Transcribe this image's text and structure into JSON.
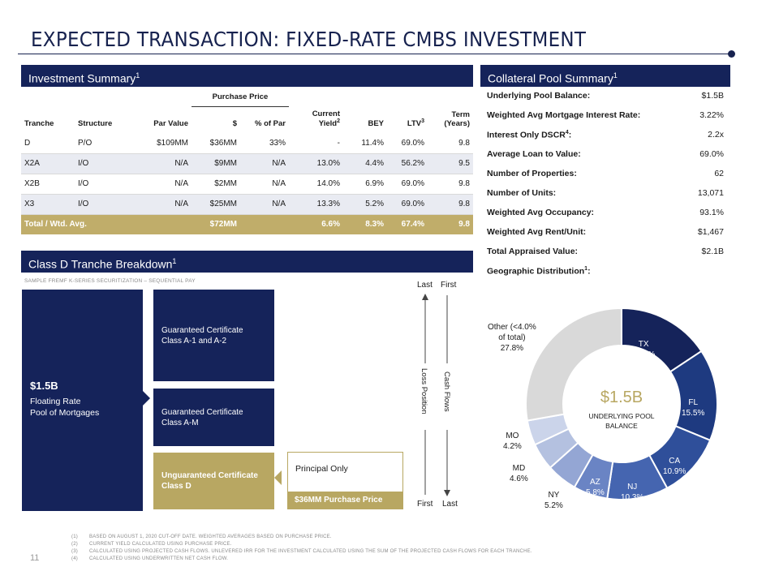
{
  "title": "EXPECTED TRANSACTION: FIXED-RATE CMBS INVESTMENT",
  "investment_summary": {
    "heading": "Investment Summary",
    "heading_sup": "1",
    "purchase_price_group": "Purchase Price",
    "columns": {
      "tranche": "Tranche",
      "structure": "Structure",
      "par_value": "Par Value",
      "dollar": "$",
      "pct_par": "% of Par",
      "current_yield": "Current Yield",
      "current_yield_sup": "2",
      "bey": "BEY",
      "ltv": "LTV",
      "ltv_sup": "3",
      "term": "Term (Years)"
    },
    "rows": [
      {
        "tranche": "D",
        "structure": "P/O",
        "par": "$109MM",
        "dollar": "$36MM",
        "pct": "33%",
        "yield": "-",
        "bey": "11.4%",
        "ltv": "69.0%",
        "term": "9.8"
      },
      {
        "tranche": "X2A",
        "structure": "I/O",
        "par": "N/A",
        "dollar": "$9MM",
        "pct": "N/A",
        "yield": "13.0%",
        "bey": "4.4%",
        "ltv": "56.2%",
        "term": "9.5"
      },
      {
        "tranche": "X2B",
        "structure": "I/O",
        "par": "N/A",
        "dollar": "$2MM",
        "pct": "N/A",
        "yield": "14.0%",
        "bey": "6.9%",
        "ltv": "69.0%",
        "term": "9.8"
      },
      {
        "tranche": "X3",
        "structure": "I/O",
        "par": "N/A",
        "dollar": "$25MM",
        "pct": "N/A",
        "yield": "13.3%",
        "bey": "5.2%",
        "ltv": "69.0%",
        "term": "9.8"
      }
    ],
    "total": {
      "label": "Total / Wtd. Avg.",
      "dollar": "$72MM",
      "yield": "6.6%",
      "bey": "8.3%",
      "ltv": "67.4%",
      "term": "9.8"
    }
  },
  "collateral_summary": {
    "heading": "Collateral Pool Summary",
    "heading_sup": "1",
    "rows": [
      {
        "label": "Underlying Pool Balance:",
        "sup": "",
        "value": "$1.5B"
      },
      {
        "label": "Weighted Avg Mortgage Interest Rate:",
        "sup": "",
        "value": "3.22%"
      },
      {
        "label": "Interest Only DSCR",
        "sup": "4",
        "suffix": ":",
        "value": "2.2x"
      },
      {
        "label": "Average Loan to Value:",
        "sup": "",
        "value": "69.0%"
      },
      {
        "label": "Number of Properties:",
        "sup": "",
        "value": "62"
      },
      {
        "label": "Number of Units:",
        "sup": "",
        "value": "13,071"
      },
      {
        "label": "Weighted Avg Occupancy:",
        "sup": "",
        "value": "93.1%"
      },
      {
        "label": "Weighted Avg Rent/Unit:",
        "sup": "",
        "value": "$1,467"
      },
      {
        "label": "Total Appraised Value:",
        "sup": "",
        "value": "$2.1B"
      },
      {
        "label": "Geographic Distribution",
        "sup": "1",
        "suffix": ":",
        "value": ""
      }
    ]
  },
  "breakdown": {
    "heading": "Class D Tranche Breakdown",
    "heading_sup": "1",
    "sample_label": "SAMPLE FREMF K-SERIES SECURITIZATION – SEQUENTIAL PAY",
    "pool_amount": "$1.5B",
    "pool_desc_1": "Floating Rate",
    "pool_desc_2": "Pool of Mortgages",
    "cert_a1_line1": "Guaranteed Certificate",
    "cert_a1_line2": "Class A-1 and A-2",
    "cert_am_line1": "Guaranteed Certificate",
    "cert_am_line2": "Class A-M",
    "cert_d_line1": "Unguaranteed Certificate",
    "cert_d_line2": "Class D",
    "principal_only": "Principal Only",
    "purchase_price": "$36MM Purchase Price",
    "last_top": "Last",
    "first_top": "First",
    "first_bottom": "First",
    "last_bottom": "Last",
    "loss_position": "Loss Position",
    "cash_flows": "Cash Flows"
  },
  "chart_data": {
    "type": "pie",
    "variant": "donut",
    "center_value": "$1.5B",
    "center_label_1": "UNDERLYING POOL",
    "center_label_2": "BALANCE",
    "slices": [
      {
        "name": "TX",
        "value": 15.7,
        "label": "15.7%",
        "color": "#15235a"
      },
      {
        "name": "FL",
        "value": 15.5,
        "label": "15.5%",
        "color": "#1e3a80"
      },
      {
        "name": "CA",
        "value": 10.9,
        "label": "10.9%",
        "color": "#2f4f9a"
      },
      {
        "name": "NJ",
        "value": 10.3,
        "label": "10.3%",
        "color": "#4565b0"
      },
      {
        "name": "AZ",
        "value": 5.8,
        "label": "5.8%",
        "color": "#6a84c4"
      },
      {
        "name": "NY",
        "value": 5.2,
        "label": "5.2%",
        "color": "#94a6d4"
      },
      {
        "name": "MD",
        "value": 4.6,
        "label": "4.6%",
        "color": "#b4c1e0"
      },
      {
        "name": "MO",
        "value": 4.2,
        "label": "4.2%",
        "color": "#cbd4ea"
      },
      {
        "name": "Other (<4.0% of total)",
        "value": 27.8,
        "label": "27.8%",
        "color": "#d9d9d9"
      }
    ],
    "labels": {
      "tx_name": "TX",
      "tx_pct": "15.7%",
      "fl_name": "FL",
      "fl_pct": "15.5%",
      "ca_name": "CA",
      "ca_pct": "10.9%",
      "nj_name": "NJ",
      "nj_pct": "10.3%",
      "az_name": "AZ",
      "az_pct": "5.8%",
      "ny_name": "NY",
      "ny_pct": "5.2%",
      "md_name": "MD",
      "md_pct": "4.6%",
      "mo_name": "MO",
      "mo_pct": "4.2%",
      "other_name_1": "Other (<4.0%",
      "other_name_2": "of total)",
      "other_pct": "27.8%"
    }
  },
  "page_number": "11",
  "footnotes": [
    {
      "num": "(1)",
      "text": "BASED ON AUGUST 1, 2020 CUT-OFF DATE. WEIGHTED AVERAGES BASED ON PURCHASE PRICE."
    },
    {
      "num": "(2)",
      "text": "CURRENT YIELD CALCULATED USING PURCHASE PRICE."
    },
    {
      "num": "(3)",
      "text": "CALCULATED USING PROJECTED CASH FLOWS. UNLEVERED IRR FOR THE INVESTMENT CALCULATED USING THE SUM OF THE PROJECTED CASH FLOWS FOR EACH TRANCHE."
    },
    {
      "num": "(4)",
      "text": "CALCULATED USING UNDERWRITTEN NET CASH FLOW."
    }
  ]
}
